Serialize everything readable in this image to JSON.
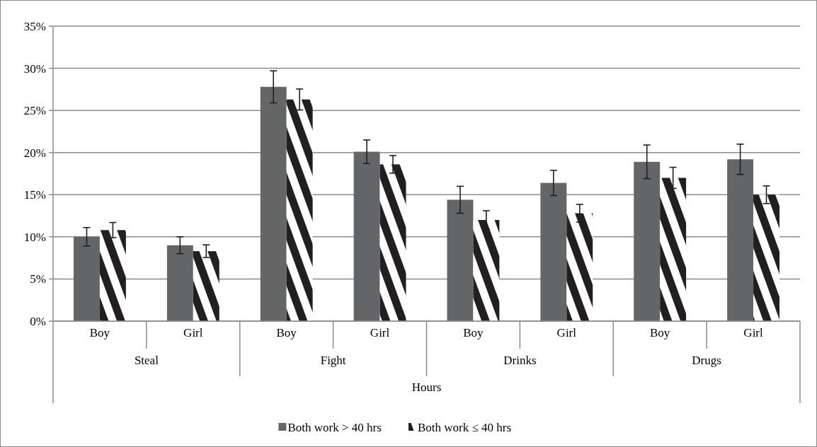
{
  "chart_data": {
    "type": "bar",
    "xlabel": "Hours",
    "categories": [
      "Boy",
      "Girl",
      "Boy",
      "Girl",
      "Boy",
      "Girl",
      "Boy",
      "Girl"
    ],
    "annotations": [
      "Steal",
      "Fight",
      "Drinks",
      "Drugs"
    ],
    "series": [
      {
        "name": "Both work > 40 hrs",
        "color": "#646567",
        "values": [
          10.0,
          9.0,
          27.8,
          20.1,
          14.4,
          16.4,
          18.9,
          19.2
        ],
        "errors": [
          1.1,
          1.0,
          1.9,
          1.4,
          1.6,
          1.5,
          2.0,
          1.8
        ]
      },
      {
        "name": "Both work ≤ 40 hrs",
        "color": "#231f20",
        "values": [
          10.8,
          8.3,
          26.3,
          18.6,
          12.0,
          12.8,
          17.0,
          15.0
        ],
        "errors": [
          0.9,
          0.75,
          1.25,
          1.05,
          1.1,
          1.05,
          1.25,
          1.05
        ]
      }
    ],
    "ylim": [
      0,
      35
    ],
    "yticks": [
      {
        "value": 0,
        "label": "0%"
      },
      {
        "value": 5,
        "label": "5%"
      },
      {
        "value": 10,
        "label": "10%"
      },
      {
        "value": 15,
        "label": "15%"
      },
      {
        "value": 20,
        "label": "20%"
      },
      {
        "value": 25,
        "label": "25%"
      },
      {
        "value": 30,
        "label": "30%"
      },
      {
        "value": 35,
        "label": "35%"
      }
    ],
    "grid": "y",
    "legend": "bottom"
  }
}
